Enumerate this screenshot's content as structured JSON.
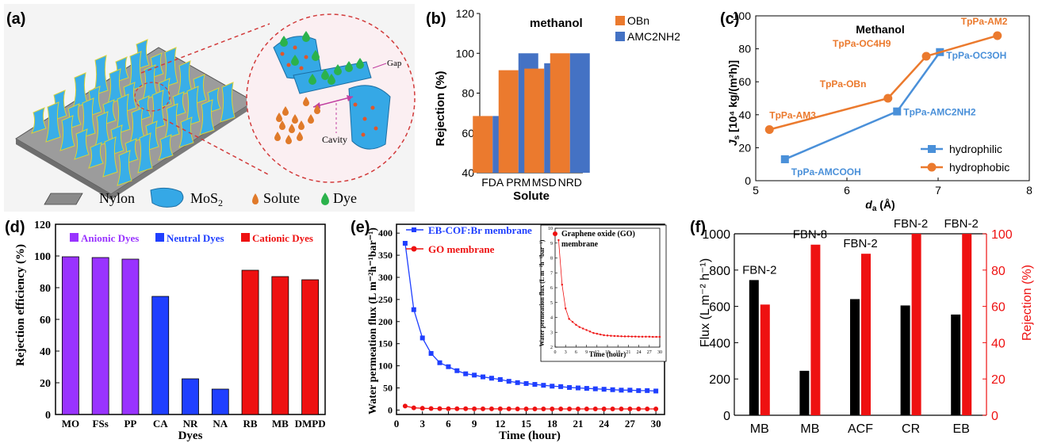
{
  "colors": {
    "orange": "#EB7A2E",
    "blue": "#4472C4",
    "purple": "#9933FF",
    "royal": "#1F3FFF",
    "red": "#EE1111",
    "black": "#000000",
    "cyan": "#3AA8E0"
  },
  "panel_a": {
    "label": "(a)",
    "gap": "Gap",
    "cavity": "Cavity",
    "legend": {
      "nylon": "Nylon",
      "mos2": "MoS",
      "mos2_sub": "2",
      "solute": "Solute",
      "dye": "Dye"
    }
  },
  "panel_labels": {
    "b": "(b)",
    "c": "(c)",
    "d": "(d)",
    "e": "(e)",
    "f": "(f)"
  },
  "panel_c_labels": {
    "y_main": "J",
    "y_sub": "s",
    "y_rest": " [10⁴ kg/(m²h)]",
    "x_main": "d",
    "x_sub": "a",
    "x_rest": " (Å)"
  },
  "panel_e_axis_y": "Water permeation flux (L m⁻²h⁻¹bar⁻¹)",
  "panel_e_inset_axis_y": "Water permeation flux (L m⁻²h⁻¹bar⁻¹)",
  "panel_f_axis_y_left": "Flux (L m⁻² h⁻¹)",
  "chart_data": [
    {
      "id": "b",
      "type": "bar",
      "title": "methanol",
      "xlabel": "Solute",
      "ylabel": "Rejection (%)",
      "categories": [
        "FDA",
        "PRM",
        "MSD",
        "NRD"
      ],
      "ylim": [
        40,
        120
      ],
      "yticks": [
        40,
        60,
        80,
        100,
        120
      ],
      "series": [
        {
          "name": "OBn",
          "color": "#EB7A2E",
          "values": [
            68.5,
            91.5,
            92.3,
            100
          ]
        },
        {
          "name": "AMC2NH2",
          "color": "#4472C4",
          "values": [
            68.5,
            100,
            95,
            100
          ]
        }
      ],
      "legend": "top-right"
    },
    {
      "id": "c",
      "type": "line",
      "title": "Methanol",
      "xlim": [
        5,
        8
      ],
      "ylim": [
        0,
        100
      ],
      "xticks": [
        5,
        6,
        7,
        8
      ],
      "yticks": [
        0,
        20,
        40,
        60,
        80,
        100
      ],
      "series": [
        {
          "name": "hydrophilic",
          "color": "#4A90D9",
          "marker": "square",
          "x": [
            5.32,
            6.55,
            7.02
          ],
          "y": [
            13,
            42,
            78
          ],
          "labels": [
            "TpPa-AMCOOH",
            "TpPa-AMC2NH2",
            "TpPa-OC3OH"
          ]
        },
        {
          "name": "hydrophobic",
          "color": "#EB7A2E",
          "marker": "circle",
          "x": [
            5.15,
            6.45,
            6.87,
            7.65
          ],
          "y": [
            31,
            50,
            75.5,
            88
          ],
          "labels": [
            "TpPa-AM3",
            "TpPa-OBn",
            "TpPa-OC4H9",
            "TpPa-AM2"
          ]
        }
      ],
      "legend": "bottom-right"
    },
    {
      "id": "d",
      "type": "bar",
      "xlabel": "Dyes",
      "ylabel": "Rejection efficiency (%)",
      "ylim": [
        0,
        120
      ],
      "yticks": [
        0,
        20,
        40,
        60,
        80,
        100,
        120
      ],
      "categories": [
        "MO",
        "FSs",
        "PP",
        "CA",
        "NR",
        "NA",
        "RB",
        "MB",
        "DMPD"
      ],
      "groups": [
        {
          "name": "Anionic Dyes",
          "color": "#9933FF",
          "categories": [
            "MO",
            "FSs",
            "PP"
          ],
          "values": [
            99.5,
            99,
            98
          ]
        },
        {
          "name": "Neutral Dyes",
          "color": "#1F3FFF",
          "categories": [
            "CA",
            "NR",
            "NA"
          ],
          "values": [
            74.5,
            22.5,
            16
          ]
        },
        {
          "name": "Cationic Dyes",
          "color": "#EE1111",
          "categories": [
            "RB",
            "MB",
            "DMPD"
          ],
          "values": [
            91,
            87,
            85
          ]
        }
      ],
      "legend": "top"
    },
    {
      "id": "e",
      "type": "line",
      "xlabel": "Time (hour)",
      "ylabel": "Water permeation flux (L m⁻²h⁻¹bar⁻¹)",
      "xlim": [
        0,
        31
      ],
      "ylim": [
        -10,
        420
      ],
      "xticks": [
        0,
        3,
        6,
        9,
        12,
        15,
        18,
        21,
        24,
        27,
        30
      ],
      "yticks": [
        0,
        50,
        100,
        150,
        200,
        250,
        300,
        350,
        400
      ],
      "series": [
        {
          "name": "EB-COF:Br membrane",
          "color": "#1F3FFF",
          "marker": "square",
          "x": [
            1,
            2,
            3,
            4,
            5,
            6,
            7,
            8,
            9,
            10,
            11,
            12,
            13,
            14,
            15,
            16,
            17,
            18,
            19,
            20,
            21,
            22,
            23,
            24,
            25,
            26,
            27,
            28,
            29,
            30
          ],
          "y": [
            377,
            227,
            163,
            128,
            107,
            98,
            89,
            82,
            79,
            75,
            72,
            69,
            65,
            62,
            60,
            58,
            56,
            54,
            53,
            51,
            50,
            49,
            48,
            47,
            46,
            45,
            45,
            44,
            44,
            43
          ]
        },
        {
          "name": "GO membrane",
          "color": "#EE1111",
          "marker": "circle",
          "x": [
            1,
            2,
            3,
            4,
            5,
            6,
            7,
            8,
            9,
            10,
            11,
            12,
            13,
            14,
            15,
            16,
            17,
            18,
            19,
            20,
            21,
            22,
            23,
            24,
            25,
            26,
            27,
            28,
            29,
            30
          ],
          "y": [
            9,
            5,
            4,
            3.5,
            3.2,
            3,
            3,
            2.9,
            2.8,
            2.8,
            2.7,
            2.7,
            2.7,
            2.6,
            2.6,
            2.6,
            2.6,
            2.6,
            2.5,
            2.5,
            2.5,
            2.5,
            2.5,
            2.5,
            2.5,
            2.5,
            2.5,
            2.5,
            2.5,
            2.5
          ]
        }
      ],
      "legend": "top-left",
      "inset": {
        "title": "Graphene oxide (GO) membrane",
        "xlabel": "Time (hour)",
        "ylabel": "Water permeation flux (L m⁻²h⁻¹bar⁻¹)",
        "xlim": [
          0,
          30
        ],
        "ylim": [
          2,
          10
        ],
        "xticks": [
          0,
          3,
          6,
          9,
          12,
          15,
          18,
          21,
          24,
          27,
          30
        ],
        "yticks": [
          2,
          3,
          4,
          5,
          6,
          7,
          8,
          9,
          10
        ],
        "color": "#EE1111",
        "x": [
          1,
          2,
          3,
          4,
          5,
          6,
          7,
          8,
          9,
          10,
          11,
          12,
          13,
          14,
          15,
          16,
          17,
          18,
          19,
          20,
          21,
          22,
          23,
          24,
          25,
          26,
          27,
          28,
          29,
          30
        ],
        "y": [
          9.2,
          6.2,
          4.6,
          3.9,
          3.7,
          3.5,
          3.35,
          3.25,
          3.15,
          3.05,
          2.95,
          2.9,
          2.85,
          2.8,
          2.78,
          2.76,
          2.75,
          2.74,
          2.73,
          2.72,
          2.72,
          2.71,
          2.71,
          2.7,
          2.7,
          2.7,
          2.7,
          2.69,
          2.69,
          2.69
        ]
      }
    },
    {
      "id": "f",
      "type": "bar",
      "categories": [
        "MB",
        "MB",
        "ACF",
        "CR",
        "EB"
      ],
      "bar_labels": [
        "FBN-2",
        "FBN-8",
        "FBN-2",
        "FBN-2",
        "FBN-2"
      ],
      "ylabel_left": "Flux (L m⁻² h⁻¹)",
      "ylabel_right": "Rejection (%)",
      "ylim_left": [
        0,
        1000
      ],
      "ylim_right": [
        0,
        100
      ],
      "yticks_left": [
        0,
        200,
        400,
        600,
        800,
        1000
      ],
      "yticks_right": [
        0,
        20,
        40,
        60,
        80,
        100
      ],
      "series": [
        {
          "name": "Flux",
          "color": "#000000",
          "axis": "left",
          "values": [
            745,
            245,
            640,
            605,
            555
          ]
        },
        {
          "name": "Rejection",
          "color": "#EE1111",
          "axis": "right",
          "values": [
            61,
            94,
            89,
            100,
            100
          ]
        }
      ]
    }
  ]
}
